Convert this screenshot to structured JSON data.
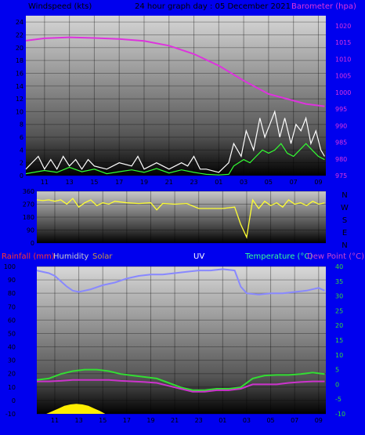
{
  "header": {
    "windspeed_label": "Windspeed (kts)",
    "graph_title": "24 hour graph day : 05 December 2021",
    "barometer_label": "Barometer (hpa)"
  },
  "colors": {
    "background": "#0000ee",
    "barometer": "#dd33dd",
    "wind_avg": "#33ff33",
    "wind_gust": "#ffffff",
    "direction": "#ffff33",
    "temperature": "#33dd33",
    "dew_point": "#cc33cc",
    "humidity": "#8888ff",
    "solar": "#ffee00",
    "rainfall_label": "#ff3333",
    "uv_label": "#ffffff",
    "temp_label": "#33ff99",
    "dew_label": "#cc44cc",
    "solar_label": "#cc9944",
    "humidity_label": "#cccccc"
  },
  "x_ticks": [
    "11",
    "13",
    "15",
    "17",
    "19",
    "21",
    "23",
    "01",
    "03",
    "05",
    "07",
    "09"
  ],
  "chart_data": [
    {
      "type": "line",
      "name": "wind-barometer",
      "title": "Windspeed (kts)",
      "y_left": {
        "min": 0,
        "max": 25,
        "ticks": [
          0,
          2,
          4,
          6,
          8,
          10,
          12,
          14,
          16,
          18,
          20,
          22,
          24
        ]
      },
      "y_right": {
        "min": 975,
        "max": 1023,
        "ticks": [
          975,
          980,
          985,
          990,
          995,
          1000,
          1005,
          1010,
          1015,
          1020
        ]
      },
      "series": [
        {
          "name": "Barometer (hpa)",
          "axis": "right",
          "x": [
            9.5,
            11,
            13,
            15,
            17,
            19,
            21,
            23,
            25,
            27,
            29,
            31,
            32,
            33.5
          ],
          "y": [
            1015.5,
            1016.2,
            1016.5,
            1016.3,
            1016,
            1015.4,
            1014,
            1011.5,
            1008,
            1003.5,
            999.5,
            997.5,
            996.5,
            995.8
          ]
        },
        {
          "name": "Wind average",
          "axis": "left",
          "x": [
            9.5,
            11,
            12,
            13,
            14,
            15,
            16,
            17,
            18,
            19,
            20,
            21,
            22,
            23,
            24,
            25,
            25.8,
            26.2,
            27,
            27.5,
            28,
            28.5,
            29,
            29.5,
            30,
            30.5,
            31,
            31.5,
            32,
            32.5,
            33,
            33.5
          ],
          "y": [
            0.3,
            0.8,
            0.5,
            1.3,
            0.6,
            1,
            0.3,
            0.6,
            0.9,
            0.5,
            1.1,
            0.4,
            0.9,
            0.5,
            0.2,
            0.1,
            0.2,
            1.5,
            2.5,
            2,
            3,
            4,
            3.5,
            4,
            5,
            3.5,
            3,
            4,
            5,
            4,
            3,
            2.5
          ]
        },
        {
          "name": "Wind gust",
          "axis": "left",
          "x": [
            9.5,
            10.5,
            11,
            11.5,
            12,
            12.5,
            13,
            13.5,
            14,
            14.5,
            15,
            16,
            17,
            18,
            18.5,
            19,
            20,
            21,
            22,
            22.5,
            23,
            23.5,
            24,
            25,
            25.8,
            26.2,
            26.8,
            27.2,
            27.8,
            28.3,
            28.7,
            29.1,
            29.5,
            29.9,
            30.3,
            30.8,
            31.2,
            31.6,
            32,
            32.4,
            32.8,
            33.2,
            33.5
          ],
          "y": [
            1,
            3,
            1,
            2.5,
            1,
            3,
            1.5,
            2.5,
            1,
            2.5,
            1.5,
            1,
            2,
            1.5,
            3,
            1,
            2,
            1,
            2,
            1.5,
            3,
            1,
            1,
            0.5,
            2,
            5,
            3,
            7,
            4,
            9,
            6,
            8,
            10,
            6,
            9,
            5,
            8,
            7,
            9,
            5,
            7,
            4,
            3
          ]
        }
      ]
    },
    {
      "type": "line",
      "name": "wind-direction",
      "y_left": {
        "min": 0,
        "max": 360,
        "ticks": [
          0,
          90,
          180,
          270,
          360
        ]
      },
      "y_right_labels": [
        "N",
        "W",
        "S",
        "E",
        "N"
      ],
      "series": [
        {
          "name": "Direction",
          "x": [
            9.5,
            10,
            10.5,
            11,
            11.5,
            12,
            12.5,
            13,
            13.5,
            14,
            14.5,
            15,
            15.5,
            16,
            17,
            18,
            19,
            19.5,
            20,
            21,
            22,
            23,
            24,
            25,
            26,
            26.5,
            27,
            27.5,
            28,
            28.5,
            29,
            29.5,
            30,
            30.5,
            31,
            31.5,
            32,
            32.5,
            33,
            33.5
          ],
          "y": [
            300,
            295,
            300,
            290,
            300,
            270,
            310,
            250,
            280,
            300,
            260,
            280,
            270,
            290,
            280,
            275,
            280,
            230,
            275,
            270,
            275,
            240,
            240,
            240,
            250,
            130,
            40,
            300,
            240,
            290,
            260,
            280,
            250,
            300,
            270,
            280,
            260,
            290,
            270,
            280
          ]
        }
      ]
    },
    {
      "type": "line",
      "name": "temp-humidity",
      "y_left": {
        "min": -10,
        "max": 100,
        "ticks": [
          -10,
          0,
          10,
          20,
          30,
          40,
          50,
          60,
          70,
          80,
          90,
          100
        ]
      },
      "y_right": {
        "min": -10,
        "max": 40,
        "ticks": [
          -10,
          -5,
          0,
          5,
          10,
          15,
          20,
          25,
          30,
          35,
          40
        ]
      },
      "labels": {
        "rainfall": "Rainfall (mm)",
        "humidity": "Humidity",
        "solar": "Solar",
        "uv": "UV",
        "temperature": "Temperature (°C)",
        "dew_point": "Dew Point (°C)"
      },
      "series": [
        {
          "name": "Humidity",
          "axis": "left",
          "x": [
            9.5,
            10.5,
            11,
            12,
            12.5,
            13,
            14,
            15,
            16,
            17,
            18,
            19,
            20,
            21,
            22,
            23,
            24,
            25,
            26,
            26.5,
            27,
            28,
            29,
            30,
            31,
            32,
            33,
            33.5
          ],
          "y": [
            97,
            95,
            93,
            85,
            82,
            81,
            83,
            86,
            88,
            91,
            93,
            94,
            94,
            95,
            96,
            97,
            97,
            98,
            97,
            85,
            80,
            79,
            80,
            80,
            81,
            82,
            84,
            82
          ]
        },
        {
          "name": "Temperature (°C)",
          "axis": "right",
          "x": [
            9.5,
            10.5,
            11.5,
            12.5,
            13.5,
            14.5,
            15.5,
            16.5,
            17.5,
            18.5,
            19.5,
            20.5,
            21.5,
            22.5,
            23.5,
            24.5,
            25.5,
            26.5,
            27.5,
            28.5,
            29.5,
            30.5,
            31.5,
            32.5,
            33.5
          ],
          "y": [
            1.5,
            2,
            3.5,
            4.5,
            5,
            5,
            4.5,
            3.5,
            3,
            2.5,
            2,
            0.5,
            -1,
            -2,
            -2,
            -1.5,
            -1.5,
            -1,
            2,
            3,
            3.2,
            3.2,
            3.5,
            4,
            3.5
          ]
        },
        {
          "name": "Dew Point (°C)",
          "axis": "right",
          "x": [
            9.5,
            10.5,
            11.5,
            12.5,
            13.5,
            14.5,
            15.5,
            16.5,
            17.5,
            18.5,
            19.5,
            20.5,
            21.5,
            22.5,
            23.5,
            24.5,
            25.5,
            26.5,
            27.5,
            28.5,
            29.5,
            30.5,
            31.5,
            32.5,
            33.5
          ],
          "y": [
            1,
            1,
            1.2,
            1.5,
            1.5,
            1.5,
            1.5,
            1.2,
            1,
            0.8,
            0.5,
            -0.5,
            -1.5,
            -2.5,
            -2.5,
            -2,
            -2,
            -1.5,
            0,
            0,
            0,
            0.5,
            0.8,
            1,
            1
          ]
        },
        {
          "name": "Solar",
          "axis": "left",
          "x": [
            10.3,
            10.8,
            11.3,
            11.8,
            12.3,
            12.8,
            13.3,
            13.8,
            14.3,
            14.8,
            15.2
          ],
          "y": [
            -10,
            -8,
            -6,
            -4,
            -3,
            -2.5,
            -3,
            -4,
            -6,
            -8,
            -10
          ]
        }
      ]
    }
  ]
}
